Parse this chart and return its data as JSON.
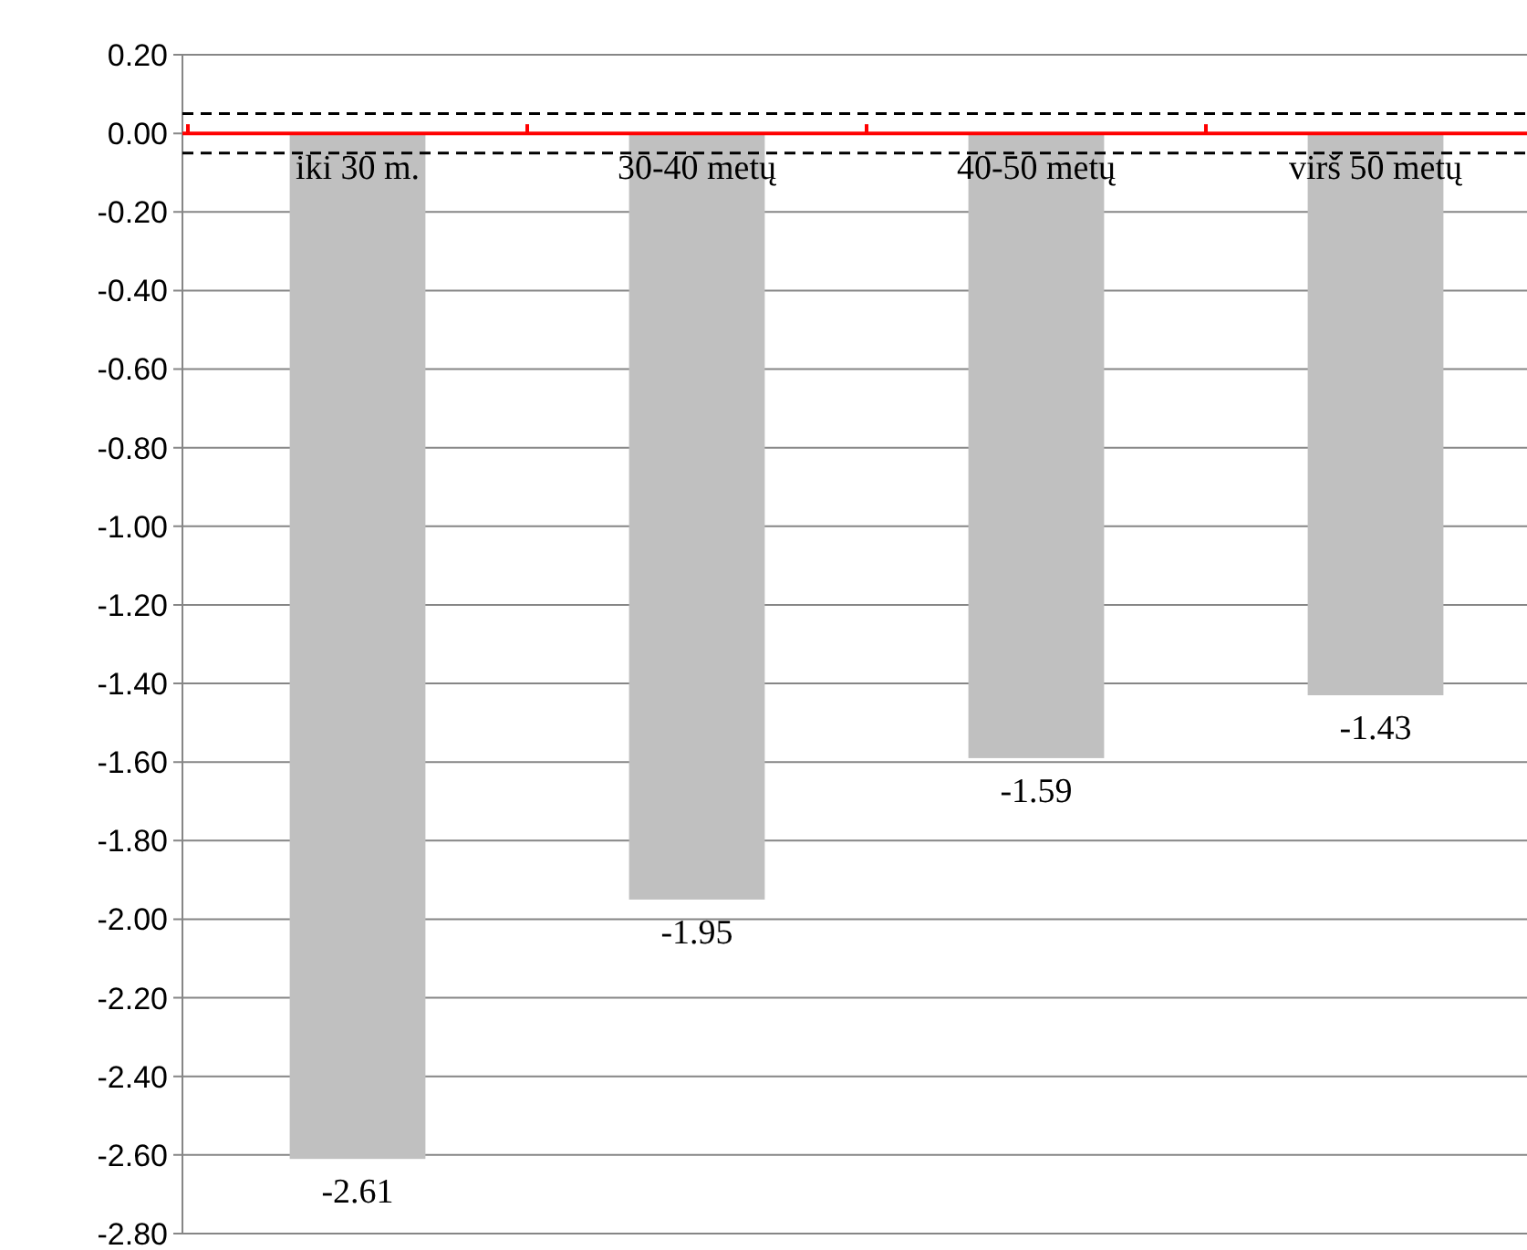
{
  "chart_data": {
    "type": "bar",
    "categories": [
      "iki 30 m.",
      "30-40 metų",
      "40-50 metų",
      "virš 50 metų"
    ],
    "values": [
      -2.61,
      -1.95,
      -1.59,
      -1.43
    ],
    "color": "#c0c0c0",
    "data_labels": true,
    "grid": "y",
    "ylim": [
      -2.8,
      0.2
    ],
    "yticks": [
      {
        "value": 0.2,
        "label": "0.20"
      },
      {
        "value": 0,
        "label": "0.00"
      },
      {
        "value": -0.2,
        "label": "-0.20"
      },
      {
        "value": -0.4,
        "label": "-0.40"
      },
      {
        "value": -0.6,
        "label": "-0.60"
      },
      {
        "value": -0.8,
        "label": "-0.80"
      },
      {
        "value": -1,
        "label": "-1.00"
      },
      {
        "value": -1.2,
        "label": "-1.20"
      },
      {
        "value": -1.4,
        "label": "-1.40"
      },
      {
        "value": -1.6,
        "label": "-1.60"
      },
      {
        "value": -1.8,
        "label": "-1.80"
      },
      {
        "value": -2,
        "label": "-2.00"
      },
      {
        "value": -2.2,
        "label": "-2.20"
      },
      {
        "value": -2.4,
        "label": "-2.40"
      },
      {
        "value": -2.6,
        "label": "-2.60"
      },
      {
        "value": -2.8,
        "label": "-2.80"
      }
    ],
    "ref_lines": [
      {
        "axis": "y",
        "value": 0.05,
        "color": "#000000",
        "line_style": "dashed"
      },
      {
        "axis": "y",
        "value": -0.05,
        "color": "#000000",
        "line_style": "dashed"
      }
    ]
  }
}
